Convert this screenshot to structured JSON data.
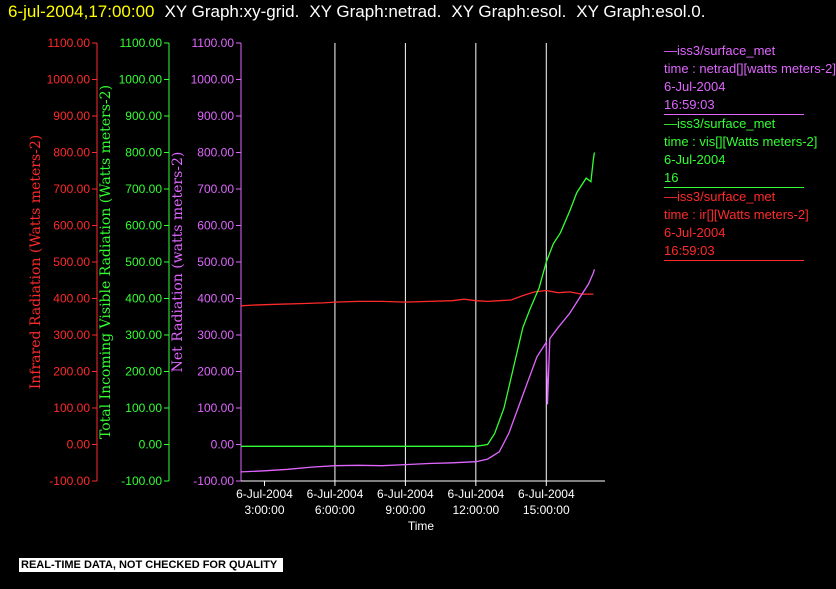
{
  "header": {
    "timestamp": "6-jul-2004,17:00:00",
    "graphs": [
      "XY Graph:xy-grid.",
      "XY Graph:netrad.",
      "XY Graph:esol.",
      "XY Graph:esol.0."
    ]
  },
  "colors": {
    "background": "#000000",
    "timestamp": "#ffff00",
    "graph_titles": "#ffffff",
    "infrared": "#ff2a2a",
    "visible": "#33ff33",
    "net": "#e066ff",
    "axis": "#ffffff"
  },
  "legend": [
    {
      "color": "#e066ff",
      "lines": [
        "—iss3/surface_met",
        "time : netrad[][watts meters-2]",
        "6-Jul-2004",
        "16:59:03"
      ]
    },
    {
      "color": "#33ff33",
      "lines": [
        "—iss3/surface_met",
        "time : vis[][Watts meters-2]",
        "6-Jul-2004",
        "16"
      ]
    },
    {
      "color": "#ff2a2a",
      "lines": [
        "—iss3/surface_met",
        "time : ir[][Watts meters-2]",
        "6-Jul-2004",
        "16:59:03"
      ]
    }
  ],
  "footer": {
    "notice": "REAL-TIME DATA, NOT CHECKED FOR QUALITY"
  },
  "chart_data": {
    "type": "line",
    "title": "",
    "xlabel": "Time",
    "x_unit": "hours",
    "xlim": [
      2.0,
      17.5
    ],
    "x_ticks": [
      {
        "x": 3,
        "date": "6-Jul-2004",
        "time": "3:00:00"
      },
      {
        "x": 6,
        "date": "6-Jul-2004",
        "time": "6:00:00"
      },
      {
        "x": 9,
        "date": "6-Jul-2004",
        "time": "9:00:00"
      },
      {
        "x": 12,
        "date": "6-Jul-2004",
        "time": "12:00:00"
      },
      {
        "x": 15,
        "date": "6-Jul-2004",
        "time": "15:00:00"
      }
    ],
    "vertical_gridlines_x": [
      6,
      9,
      12,
      15
    ],
    "y_axes": [
      {
        "label": "Infrared Radiation (Watts meters-2)",
        "color": "#ff2a2a",
        "ylim": [
          -100,
          1100
        ],
        "ticks": [
          "1100.00",
          "1000.00",
          "900.00",
          "800.00",
          "700.00",
          "600.00",
          "500.00",
          "400.00",
          "300.00",
          "200.00",
          "100.00",
          "0.00",
          "-100.00"
        ]
      },
      {
        "label": "Total Incoming Visible Radiation (Watts meters-2)",
        "color": "#33ff33",
        "ylim": [
          -100,
          1100
        ],
        "ticks": [
          "1100.00",
          "1000.00",
          "900.00",
          "800.00",
          "700.00",
          "600.00",
          "500.00",
          "400.00",
          "300.00",
          "200.00",
          "100.00",
          "0.00",
          "-100.00"
        ]
      },
      {
        "label": "Net Radiation (watts meters-2)",
        "color": "#e066ff",
        "ylim": [
          -100,
          1100
        ],
        "ticks": [
          "1100.00",
          "1000.00",
          "900.00",
          "800.00",
          "700.00",
          "600.00",
          "500.00",
          "400.00",
          "300.00",
          "200.00",
          "100.00",
          "0.00",
          "-100.00"
        ]
      }
    ],
    "series": [
      {
        "axis": 0,
        "color": "#ff2a2a",
        "x": [
          2.0,
          2.5,
          3.5,
          4.5,
          5.5,
          6.0,
          7.0,
          8.0,
          9.0,
          10.0,
          11.0,
          11.5,
          12.0,
          12.5,
          13.0,
          13.5,
          14.0,
          14.5,
          15.0,
          15.5,
          16.0,
          16.5,
          17.0
        ],
        "y": [
          380,
          382,
          384,
          386,
          388,
          390,
          392,
          392,
          390,
          392,
          394,
          398,
          394,
          392,
          394,
          396,
          408,
          418,
          422,
          416,
          418,
          412,
          412
        ]
      },
      {
        "axis": 1,
        "color": "#33ff33",
        "x": [
          2.0,
          4.0,
          6.0,
          8.0,
          10.0,
          12.0,
          12.5,
          12.8,
          13.2,
          13.6,
          14.0,
          14.3,
          14.7,
          15.0,
          15.3,
          15.6,
          16.0,
          16.3,
          16.7,
          16.9,
          17.0,
          17.05
        ],
        "y": [
          -5,
          -5,
          -5,
          -5,
          -5,
          -5,
          0,
          30,
          100,
          210,
          320,
          370,
          430,
          500,
          550,
          580,
          640,
          690,
          730,
          720,
          780,
          800
        ]
      },
      {
        "axis": 2,
        "color": "#e066ff",
        "x": [
          2.0,
          3.0,
          4.0,
          5.0,
          6.0,
          7.0,
          8.0,
          9.0,
          10.0,
          11.0,
          12.0,
          12.5,
          13.0,
          13.4,
          13.8,
          14.2,
          14.6,
          15.0,
          15.05,
          15.15,
          15.5,
          16.0,
          16.5,
          16.8,
          17.0,
          17.05
        ],
        "y": [
          -75,
          -72,
          -68,
          -62,
          -58,
          -57,
          -58,
          -55,
          -52,
          -50,
          -47,
          -40,
          -20,
          30,
          100,
          170,
          240,
          280,
          110,
          290,
          320,
          360,
          410,
          440,
          470,
          480
        ]
      }
    ]
  }
}
